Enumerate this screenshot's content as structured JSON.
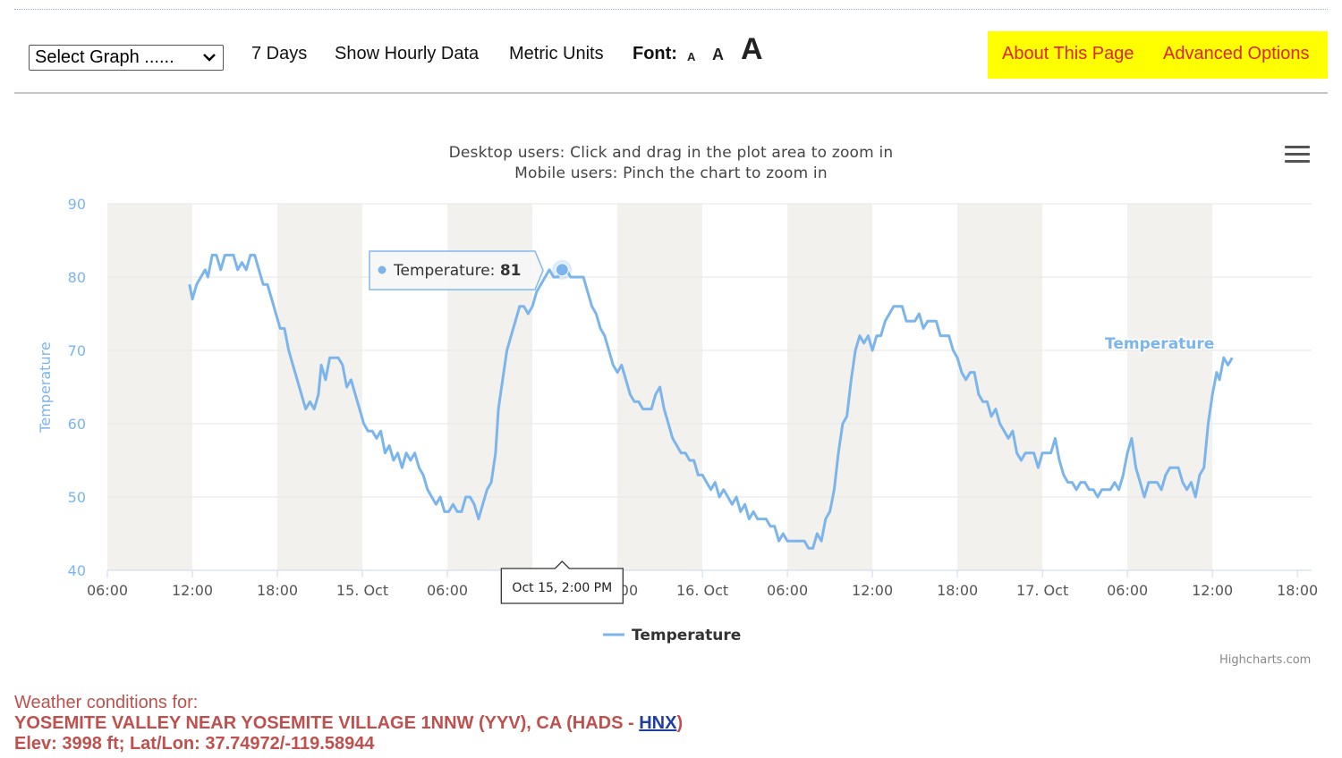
{
  "toolbar": {
    "select_graph": "Select Graph ......",
    "days": "7 Days",
    "hourly": "Show Hourly Data",
    "metric": "Metric Units",
    "font_label": "Font:",
    "font_small": "A",
    "font_medium": "A",
    "font_large": "A",
    "about": "About This Page",
    "advanced": "Advanced Options",
    "highlight_color": "#ffff00",
    "link_color": "#e0231c"
  },
  "hint": {
    "line1": "Desktop users: Click and drag in the plot area to zoom in",
    "line2": "Mobile users: Pinch the chart to zoom in"
  },
  "chart_data": {
    "type": "line",
    "ylabel": "Temperature",
    "ylim": [
      40,
      90
    ],
    "y_ticks": [
      40,
      50,
      60,
      70,
      80,
      90
    ],
    "x_range_hours": [
      6,
      91
    ],
    "x_tick_labels": [
      {
        "h": 6,
        "label": "06:00"
      },
      {
        "h": 12,
        "label": "12:00"
      },
      {
        "h": 18,
        "label": "18:00"
      },
      {
        "h": 24,
        "label": "15. Oct"
      },
      {
        "h": 30,
        "label": "06:00"
      },
      {
        "h": 36,
        "label": "12:00"
      },
      {
        "h": 42,
        "label": "18:00"
      },
      {
        "h": 48,
        "label": "16. Oct"
      },
      {
        "h": 54,
        "label": "06:00"
      },
      {
        "h": 60,
        "label": "12:00"
      },
      {
        "h": 66,
        "label": "18:00"
      },
      {
        "h": 72,
        "label": "17. Oct"
      },
      {
        "h": 78,
        "label": "06:00"
      },
      {
        "h": 84,
        "label": "12:00"
      },
      {
        "h": 90,
        "label": "18:00"
      }
    ],
    "night_bands_hours": [
      [
        6,
        12
      ],
      [
        18,
        24
      ],
      [
        30,
        36
      ],
      [
        42,
        48
      ],
      [
        54,
        60
      ],
      [
        66,
        72
      ],
      [
        78,
        84
      ]
    ],
    "series": [
      {
        "name": "Temperature",
        "color": "#7cb5ec",
        "points": [
          [
            11.8,
            79
          ],
          [
            12.0,
            77
          ],
          [
            12.3,
            79
          ],
          [
            12.6,
            80
          ],
          [
            12.9,
            81
          ],
          [
            13.1,
            80
          ],
          [
            13.4,
            83
          ],
          [
            13.7,
            83
          ],
          [
            14.0,
            81
          ],
          [
            14.3,
            83
          ],
          [
            14.6,
            83
          ],
          [
            14.9,
            83
          ],
          [
            15.2,
            81
          ],
          [
            15.5,
            82
          ],
          [
            15.8,
            81
          ],
          [
            16.1,
            83
          ],
          [
            16.4,
            83
          ],
          [
            16.7,
            81
          ],
          [
            17.0,
            79
          ],
          [
            17.3,
            79
          ],
          [
            17.6,
            77
          ],
          [
            17.9,
            75
          ],
          [
            18.2,
            73
          ],
          [
            18.5,
            73
          ],
          [
            18.8,
            70
          ],
          [
            19.1,
            68
          ],
          [
            19.4,
            66
          ],
          [
            19.7,
            64
          ],
          [
            20.0,
            62
          ],
          [
            20.3,
            63
          ],
          [
            20.6,
            62
          ],
          [
            20.9,
            64
          ],
          [
            21.1,
            68
          ],
          [
            21.4,
            66
          ],
          [
            21.7,
            69
          ],
          [
            22.0,
            69
          ],
          [
            22.3,
            69
          ],
          [
            22.6,
            68
          ],
          [
            22.9,
            65
          ],
          [
            23.2,
            66
          ],
          [
            23.5,
            64
          ],
          [
            23.8,
            62
          ],
          [
            24.1,
            60
          ],
          [
            24.4,
            59
          ],
          [
            24.7,
            59
          ],
          [
            25.0,
            58
          ],
          [
            25.3,
            59
          ],
          [
            25.6,
            56
          ],
          [
            25.9,
            57
          ],
          [
            26.2,
            55
          ],
          [
            26.5,
            56
          ],
          [
            26.8,
            54
          ],
          [
            27.1,
            56
          ],
          [
            27.4,
            55
          ],
          [
            27.7,
            56
          ],
          [
            28.0,
            54
          ],
          [
            28.3,
            53
          ],
          [
            28.6,
            51
          ],
          [
            28.9,
            50
          ],
          [
            29.2,
            49
          ],
          [
            29.5,
            50
          ],
          [
            29.8,
            48
          ],
          [
            30.1,
            48
          ],
          [
            30.4,
            49
          ],
          [
            30.7,
            48
          ],
          [
            31.0,
            48
          ],
          [
            31.3,
            50
          ],
          [
            31.6,
            50
          ],
          [
            31.9,
            49
          ],
          [
            32.2,
            47
          ],
          [
            32.5,
            49
          ],
          [
            32.8,
            51
          ],
          [
            33.1,
            52
          ],
          [
            33.4,
            56
          ],
          [
            33.6,
            62
          ],
          [
            33.9,
            66
          ],
          [
            34.2,
            70
          ],
          [
            34.5,
            72
          ],
          [
            34.8,
            74
          ],
          [
            35.1,
            76
          ],
          [
            35.4,
            76
          ],
          [
            35.7,
            75
          ],
          [
            36.0,
            76
          ],
          [
            36.3,
            78
          ],
          [
            36.6,
            79
          ],
          [
            36.9,
            80
          ],
          [
            37.2,
            81
          ],
          [
            37.5,
            80
          ],
          [
            37.8,
            80
          ],
          [
            38.1,
            81
          ],
          [
            38.4,
            81
          ],
          [
            38.7,
            80
          ],
          [
            39.0,
            80
          ],
          [
            39.3,
            80
          ],
          [
            39.6,
            80
          ],
          [
            39.9,
            78
          ],
          [
            40.2,
            76
          ],
          [
            40.5,
            75
          ],
          [
            40.8,
            73
          ],
          [
            41.1,
            72
          ],
          [
            41.4,
            70
          ],
          [
            41.7,
            68
          ],
          [
            42.0,
            67
          ],
          [
            42.3,
            68
          ],
          [
            42.6,
            66
          ],
          [
            42.9,
            64
          ],
          [
            43.2,
            63
          ],
          [
            43.5,
            63
          ],
          [
            43.8,
            62
          ],
          [
            44.1,
            62
          ],
          [
            44.4,
            62
          ],
          [
            44.7,
            64
          ],
          [
            45.0,
            65
          ],
          [
            45.3,
            62
          ],
          [
            45.6,
            60
          ],
          [
            45.9,
            58
          ],
          [
            46.2,
            57
          ],
          [
            46.5,
            56
          ],
          [
            46.8,
            56
          ],
          [
            47.1,
            55
          ],
          [
            47.4,
            55
          ],
          [
            47.7,
            53
          ],
          [
            48.0,
            53
          ],
          [
            48.3,
            52
          ],
          [
            48.6,
            51
          ],
          [
            48.9,
            52
          ],
          [
            49.2,
            50
          ],
          [
            49.5,
            51
          ],
          [
            49.8,
            50
          ],
          [
            50.1,
            49
          ],
          [
            50.4,
            50
          ],
          [
            50.7,
            48
          ],
          [
            51.0,
            49
          ],
          [
            51.3,
            47
          ],
          [
            51.6,
            48
          ],
          [
            51.9,
            47
          ],
          [
            52.2,
            47
          ],
          [
            52.5,
            47
          ],
          [
            52.8,
            46
          ],
          [
            53.1,
            46
          ],
          [
            53.4,
            44
          ],
          [
            53.7,
            45
          ],
          [
            54.0,
            44
          ],
          [
            54.3,
            44
          ],
          [
            54.6,
            44
          ],
          [
            54.9,
            44
          ],
          [
            55.2,
            44
          ],
          [
            55.5,
            43
          ],
          [
            55.8,
            43
          ],
          [
            56.1,
            45
          ],
          [
            56.4,
            44
          ],
          [
            56.7,
            47
          ],
          [
            57.0,
            48
          ],
          [
            57.3,
            51
          ],
          [
            57.6,
            56
          ],
          [
            57.9,
            60
          ],
          [
            58.2,
            61
          ],
          [
            58.5,
            66
          ],
          [
            58.8,
            70
          ],
          [
            59.1,
            72
          ],
          [
            59.4,
            71
          ],
          [
            59.7,
            72
          ],
          [
            60.0,
            70
          ],
          [
            60.3,
            72
          ],
          [
            60.6,
            72
          ],
          [
            60.9,
            74
          ],
          [
            61.2,
            75
          ],
          [
            61.5,
            76
          ],
          [
            61.8,
            76
          ],
          [
            62.1,
            76
          ],
          [
            62.4,
            74
          ],
          [
            62.7,
            74
          ],
          [
            63.0,
            74
          ],
          [
            63.3,
            75
          ],
          [
            63.6,
            73
          ],
          [
            63.9,
            74
          ],
          [
            64.2,
            74
          ],
          [
            64.5,
            74
          ],
          [
            64.8,
            72
          ],
          [
            65.1,
            72
          ],
          [
            65.4,
            72
          ],
          [
            65.7,
            70
          ],
          [
            66.0,
            69
          ],
          [
            66.3,
            67
          ],
          [
            66.6,
            66
          ],
          [
            66.9,
            67
          ],
          [
            67.2,
            67
          ],
          [
            67.5,
            64
          ],
          [
            67.8,
            63
          ],
          [
            68.1,
            63
          ],
          [
            68.4,
            61
          ],
          [
            68.7,
            62
          ],
          [
            69.0,
            60
          ],
          [
            69.3,
            59
          ],
          [
            69.6,
            58
          ],
          [
            69.9,
            59
          ],
          [
            70.2,
            56
          ],
          [
            70.5,
            55
          ],
          [
            70.8,
            56
          ],
          [
            71.1,
            56
          ],
          [
            71.4,
            56
          ],
          [
            71.7,
            54
          ],
          [
            72.0,
            56
          ],
          [
            72.3,
            56
          ],
          [
            72.6,
            56
          ],
          [
            72.9,
            58
          ],
          [
            73.2,
            55
          ],
          [
            73.5,
            53
          ],
          [
            73.8,
            52
          ],
          [
            74.1,
            52
          ],
          [
            74.4,
            51
          ],
          [
            74.7,
            52
          ],
          [
            75.0,
            52
          ],
          [
            75.3,
            51
          ],
          [
            75.6,
            51
          ],
          [
            75.9,
            50
          ],
          [
            76.2,
            51
          ],
          [
            76.5,
            51
          ],
          [
            76.8,
            51
          ],
          [
            77.1,
            52
          ],
          [
            77.4,
            51
          ],
          [
            77.7,
            53
          ],
          [
            78.0,
            56
          ],
          [
            78.3,
            58
          ],
          [
            78.6,
            54
          ],
          [
            78.9,
            52
          ],
          [
            79.2,
            50
          ],
          [
            79.5,
            52
          ],
          [
            79.8,
            52
          ],
          [
            80.1,
            52
          ],
          [
            80.4,
            51
          ],
          [
            80.7,
            53
          ],
          [
            81.0,
            54
          ],
          [
            81.3,
            54
          ],
          [
            81.6,
            54
          ],
          [
            81.9,
            52
          ],
          [
            82.2,
            51
          ],
          [
            82.5,
            52
          ],
          [
            82.8,
            50
          ],
          [
            83.1,
            53
          ],
          [
            83.4,
            54
          ],
          [
            83.7,
            60
          ],
          [
            84.0,
            64
          ],
          [
            84.3,
            67
          ],
          [
            84.5,
            66
          ],
          [
            84.8,
            69
          ],
          [
            85.1,
            68
          ],
          [
            85.4,
            69
          ]
        ]
      }
    ],
    "tooltip": {
      "x": "Oct 15, 2:00 PM",
      "series": "Temperature",
      "value": "81",
      "h": 38.1,
      "y": 81
    },
    "series_label": "Temperature",
    "legend": {
      "label": "Temperature",
      "position": "bottom-center"
    },
    "credit": "Highcharts.com"
  },
  "footer": {
    "line1": "Weather conditions for:",
    "station": "YOSEMITE VALLEY NEAR YOSEMITE VILLAGE 1NNW (YYV), CA (HADS - ",
    "link": "HNX",
    "station_close": ")",
    "line3": "Elev: 3998 ft; Lat/Lon: 37.74972/-119.58944"
  }
}
